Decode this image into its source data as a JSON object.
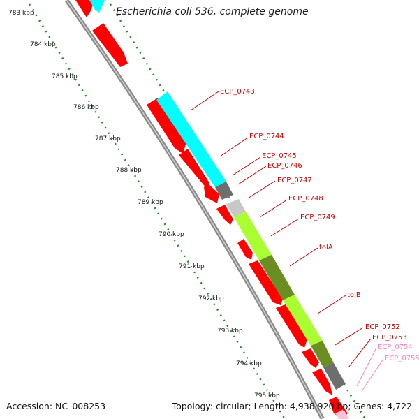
{
  "title": "Escherichia coli 536, complete genome",
  "accession_text": "Accession: NC_008253",
  "topology_text": "Topology: circular; Length: 4,938,920 bp; Genes: 4,722",
  "ticks": [
    "783 kbp",
    "784 kbp",
    "785 kbp",
    "786 kbp",
    "787 kbp",
    "788 kbp",
    "789 kbp",
    "790 kbp",
    "791 kbp",
    "792 kbp",
    "793 kbp",
    "794 kbp",
    "795 kbp"
  ],
  "gene_labels": [
    {
      "name": "ECP_0743",
      "faded": false
    },
    {
      "name": "ECP_0744",
      "faded": false
    },
    {
      "name": "ECP_0745",
      "faded": false
    },
    {
      "name": "ECP_0746",
      "faded": false
    },
    {
      "name": "ECP_0747",
      "faded": false
    },
    {
      "name": "ECP_0748",
      "faded": false
    },
    {
      "name": "ECP_0749",
      "faded": false
    },
    {
      "name": "tolA",
      "faded": false
    },
    {
      "name": "tolB",
      "faded": false
    },
    {
      "name": "ECP_0752",
      "faded": false
    },
    {
      "name": "ECP_0753",
      "faded": false
    },
    {
      "name": "ECP_0754",
      "faded": true
    },
    {
      "name": "ECP_0755",
      "faded": true
    }
  ],
  "colors": {
    "gene": "#ff0000",
    "cyan_feature": "#00ffff",
    "light_green_feature": "#aaff33",
    "olive_feature": "#6b8e23",
    "dark_gray_feature": "#6e6e6e",
    "light_gray_feature": "#c8c8c8",
    "backbone": "#8c8c8c",
    "scale_dots": "#228b22",
    "label": "#cc0000",
    "label_faded": "#ff80c0"
  }
}
